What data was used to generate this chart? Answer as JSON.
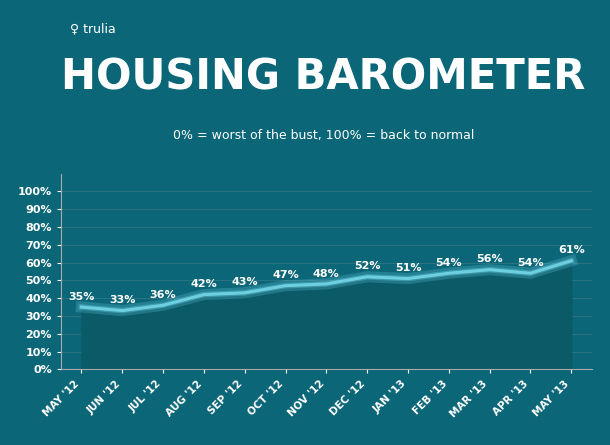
{
  "months": [
    "MAY '12",
    "JUN '12",
    "JUL '12",
    "AUG '12",
    "SEP '12",
    "OCT '12",
    "NOV '12",
    "DEC '12",
    "JAN '13",
    "FEB '13",
    "MAR '13",
    "APR '13",
    "MAY '13"
  ],
  "values": [
    35,
    33,
    36,
    42,
    43,
    47,
    48,
    52,
    51,
    54,
    56,
    54,
    61
  ],
  "bg_color": "#0b6678",
  "line_color": "#6dd0e0",
  "fill_color": "#0a5a68",
  "text_color": "#ffffff",
  "title_sub": "0% = worst of the bust, 100% = back to normal",
  "trulia_text": "trulia",
  "ytick_labels": [
    "0%",
    "10%",
    "20%",
    "30%",
    "40%",
    "50%",
    "60%",
    "70%",
    "80%",
    "90%",
    "100%"
  ],
  "title_fontsize": 30,
  "subtitle_fontsize": 9,
  "trulia_fontsize": 9,
  "label_fontsize": 8,
  "tick_fontsize": 8
}
